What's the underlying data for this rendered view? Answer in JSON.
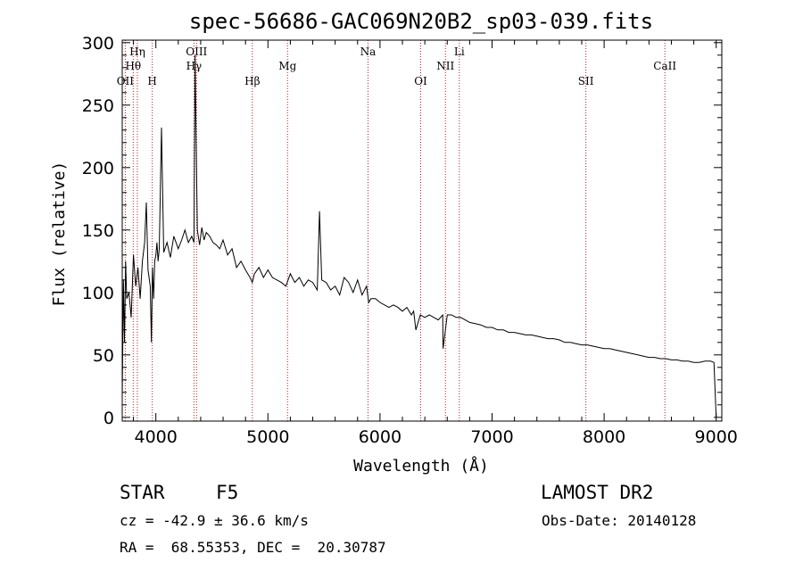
{
  "chart_data": {
    "type": "line",
    "title": "spec-56686-GAC069N20B2_sp03-039.fits",
    "xlabel": "Wavelength (Å)",
    "ylabel": "Flux (relative)",
    "xlim": [
      3700,
      9050
    ],
    "ylim": [
      -3,
      302
    ],
    "xticks": [
      4000,
      5000,
      6000,
      7000,
      8000,
      9000
    ],
    "yticks": [
      0,
      50,
      100,
      150,
      200,
      250,
      300
    ],
    "grid": false,
    "series": [
      {
        "x": [
          3700,
          3710,
          3720,
          3730,
          3740,
          3760,
          3780,
          3800,
          3820,
          3840,
          3860,
          3880,
          3900,
          3915,
          3930,
          3950,
          3960,
          3970,
          3980,
          3990,
          4000,
          4010,
          4020,
          4030,
          4050,
          4070,
          4100,
          4130,
          4160,
          4200,
          4230,
          4260,
          4290,
          4320,
          4340,
          4350,
          4370,
          4390,
          4410,
          4430,
          4450,
          4480,
          4510,
          4540,
          4570,
          4600,
          4640,
          4680,
          4720,
          4760,
          4800,
          4840,
          4861,
          4880,
          4920,
          4960,
          5000,
          5040,
          5080,
          5120,
          5160,
          5200,
          5240,
          5280,
          5320,
          5360,
          5400,
          5440,
          5460,
          5480,
          5520,
          5560,
          5600,
          5640,
          5680,
          5720,
          5760,
          5800,
          5840,
          5880,
          5900,
          5920,
          5960,
          6000,
          6040,
          6080,
          6120,
          6160,
          6200,
          6240,
          6280,
          6300,
          6320,
          6360,
          6400,
          6440,
          6480,
          6520,
          6560,
          6563,
          6600,
          6640,
          6680,
          6720,
          6760,
          6800,
          6850,
          6900,
          6950,
          7000,
          7050,
          7100,
          7150,
          7200,
          7250,
          7300,
          7350,
          7400,
          7450,
          7500,
          7550,
          7600,
          7650,
          7700,
          7750,
          7800,
          7850,
          7900,
          7950,
          8000,
          8050,
          8100,
          8150,
          8200,
          8250,
          8300,
          8350,
          8400,
          8450,
          8500,
          8550,
          8600,
          8650,
          8700,
          8750,
          8800,
          8850,
          8900,
          8950,
          8980,
          9000
        ],
        "y": [
          15,
          110,
          60,
          125,
          95,
          100,
          80,
          130,
          105,
          120,
          95,
          125,
          140,
          172,
          118,
          105,
          60,
          120,
          95,
          125,
          130,
          140,
          125,
          135,
          232,
          132,
          140,
          128,
          145,
          135,
          142,
          150,
          140,
          145,
          140,
          290,
          150,
          138,
          152,
          142,
          148,
          145,
          140,
          138,
          135,
          142,
          130,
          135,
          120,
          125,
          118,
          112,
          108,
          115,
          120,
          112,
          118,
          112,
          110,
          108,
          105,
          115,
          108,
          112,
          105,
          110,
          108,
          102,
          165,
          110,
          108,
          102,
          105,
          98,
          112,
          108,
          100,
          110,
          98,
          105,
          92,
          95,
          95,
          92,
          90,
          88,
          90,
          88,
          85,
          88,
          82,
          85,
          70,
          82,
          80,
          82,
          80,
          78,
          82,
          55,
          82,
          82,
          80,
          80,
          78,
          76,
          75,
          74,
          72,
          72,
          70,
          70,
          68,
          68,
          67,
          66,
          66,
          65,
          64,
          63,
          63,
          62,
          60,
          60,
          59,
          58,
          58,
          57,
          56,
          55,
          55,
          54,
          53,
          52,
          51,
          50,
          49,
          48,
          48,
          47,
          47,
          46,
          46,
          45,
          45,
          44,
          44,
          45,
          45,
          44,
          0
        ]
      }
    ],
    "line_markers": [
      {
        "label": "Hη",
        "x": 3835,
        "row": 1
      },
      {
        "label": "Hθ",
        "x": 3798,
        "row": 2
      },
      {
        "label": "OII",
        "x": 3727,
        "row": 3
      },
      {
        "label": "H",
        "x": 3968,
        "row": 3
      },
      {
        "label": "OIII",
        "x": 4363,
        "row": 1
      },
      {
        "label": "Hγ",
        "x": 4340,
        "row": 2
      },
      {
        "label": "Hβ",
        "x": 4861,
        "row": 3
      },
      {
        "label": "Mg",
        "x": 5175,
        "row": 2
      },
      {
        "label": "Na",
        "x": 5893,
        "row": 1
      },
      {
        "label": "OI",
        "x": 6363,
        "row": 3
      },
      {
        "label": "Li",
        "x": 6708,
        "row": 1
      },
      {
        "label": "NII",
        "x": 6584,
        "row": 2
      },
      {
        "label": "SII",
        "x": 7837,
        "row": 3
      },
      {
        "label": "CaII",
        "x": 8542,
        "row": 2
      }
    ]
  },
  "info": {
    "class_type": "STAR",
    "subclass": "F5",
    "survey": "LAMOST DR2",
    "cz": "cz = -42.9 ± 36.6 km/s",
    "obs_date": "Obs-Date: 20140128",
    "coords": "RA =  68.55353, DEC =  20.30787"
  },
  "colors": {
    "marker_line": "#b22222",
    "spectrum": "#000000"
  }
}
